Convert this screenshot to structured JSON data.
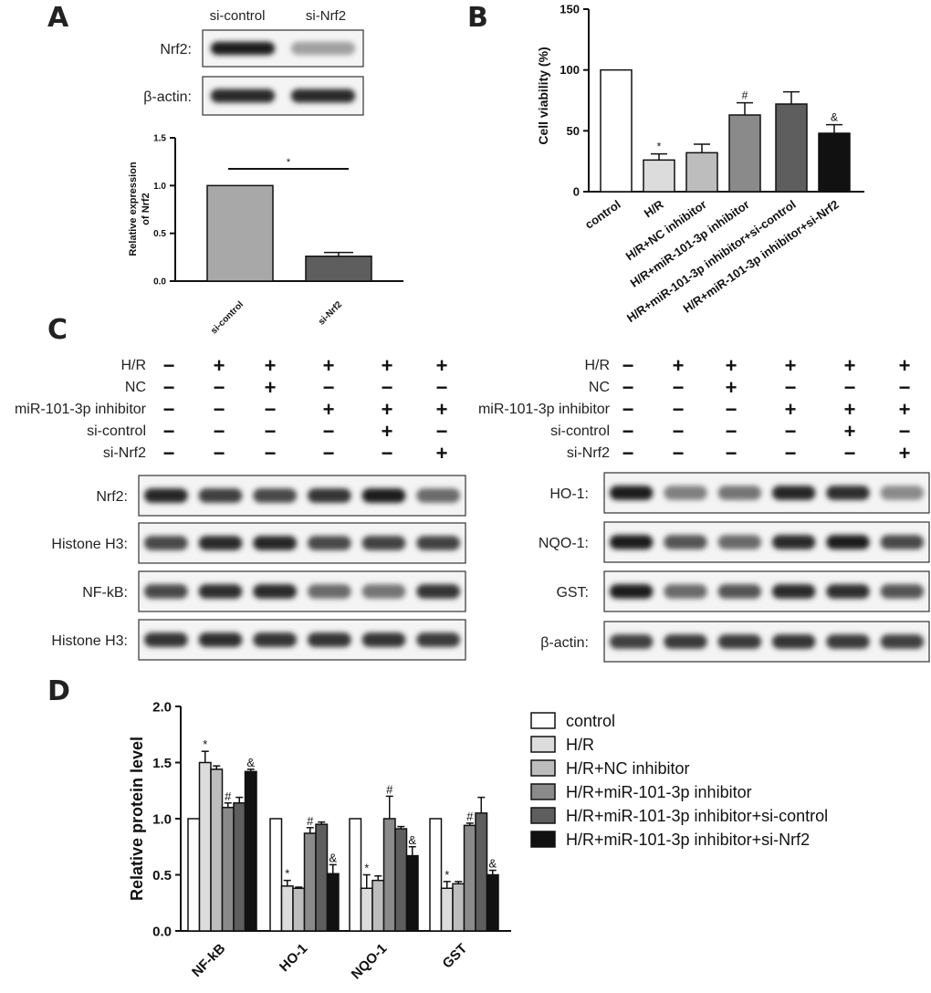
{
  "panel_letters": [
    "A",
    "B",
    "C",
    "D"
  ],
  "panel_a": {
    "blot_lane_labels": [
      "si-control",
      "si-Nrf2"
    ],
    "blots": [
      {
        "label": "Nrf2:",
        "intensities": [
          0.95,
          0.35
        ]
      },
      {
        "label": "β-actin:",
        "intensities": [
          0.9,
          0.9
        ]
      }
    ]
  },
  "panel_c": {
    "left": {
      "conditions": [
        {
          "label": "H/R",
          "signs": [
            "−",
            "+",
            "+",
            "+",
            "+",
            "+"
          ]
        },
        {
          "label": "NC",
          "signs": [
            "−",
            "−",
            "+",
            "−",
            "−",
            "−"
          ]
        },
        {
          "label": "miR-101-3p inhibitor",
          "signs": [
            "−",
            "−",
            "−",
            "+",
            "+",
            "+"
          ]
        },
        {
          "label": "si-control",
          "signs": [
            "−",
            "−",
            "−",
            "−",
            "+",
            "−"
          ]
        },
        {
          "label": "si-Nrf2",
          "signs": [
            "−",
            "−",
            "−",
            "−",
            "−",
            "+"
          ]
        }
      ],
      "blots": [
        {
          "label": "Nrf2:",
          "intensities": [
            0.92,
            0.8,
            0.75,
            0.85,
            0.95,
            0.6
          ]
        },
        {
          "label": "Histone H3:",
          "intensities": [
            0.75,
            0.9,
            0.92,
            0.75,
            0.78,
            0.78
          ]
        },
        {
          "label": "NF-kB:",
          "intensities": [
            0.75,
            0.88,
            0.9,
            0.6,
            0.55,
            0.85
          ]
        },
        {
          "label": "Histone H3:",
          "intensities": [
            0.85,
            0.88,
            0.85,
            0.85,
            0.85,
            0.82
          ]
        }
      ]
    },
    "right": {
      "conditions": [
        {
          "label": "H/R",
          "signs": [
            "−",
            "+",
            "+",
            "+",
            "+",
            "+"
          ]
        },
        {
          "label": "NC",
          "signs": [
            "−",
            "−",
            "+",
            "−",
            "−",
            "−"
          ]
        },
        {
          "label": "miR-101-3p inhibitor",
          "signs": [
            "−",
            "−",
            "−",
            "+",
            "+",
            "+"
          ]
        },
        {
          "label": "si-control",
          "signs": [
            "−",
            "−",
            "−",
            "−",
            "+",
            "−"
          ]
        },
        {
          "label": "si-Nrf2",
          "signs": [
            "−",
            "−",
            "−",
            "−",
            "−",
            "+"
          ]
        }
      ],
      "blots": [
        {
          "label": "HO-1:",
          "intensities": [
            0.95,
            0.5,
            0.55,
            0.92,
            0.88,
            0.45
          ]
        },
        {
          "label": "NQO-1:",
          "intensities": [
            0.95,
            0.7,
            0.6,
            0.9,
            0.95,
            0.75
          ]
        },
        {
          "label": "GST:",
          "intensities": [
            0.95,
            0.6,
            0.7,
            0.9,
            0.88,
            0.7
          ]
        },
        {
          "label": "β-actin:",
          "intensities": [
            0.8,
            0.82,
            0.82,
            0.85,
            0.82,
            0.8
          ]
        }
      ]
    }
  },
  "colors": {
    "palette": [
      "#ffffff",
      "#dcdcdc",
      "#bdbdbd",
      "#8a8a8a",
      "#5e5e5e",
      "#111111"
    ],
    "panel_a": [
      "#a8a8a8",
      "#5e5e5e"
    ]
  },
  "chart_data": [
    {
      "type": "bar",
      "panel": "A",
      "categories": [
        "si-control",
        "si-Nrf2"
      ],
      "values": [
        1.0,
        0.26
      ],
      "errors": [
        0.0,
        0.04
      ],
      "ylabel": "Relative expression of Nrf2",
      "ylim": [
        0,
        1.5
      ],
      "yticks": [
        "0.0",
        "0.5",
        "1.0",
        "1.5"
      ],
      "significance": "*"
    },
    {
      "type": "bar",
      "panel": "B",
      "categories": [
        "control",
        "H/R",
        "H/R+NC inhibitor",
        "H/R+miR-101-3p inhibitor",
        "H/R+miR-101-3p inhibitor+si-control",
        "H/R+miR-101-3p inhibitor+si-Nrf2"
      ],
      "values": [
        100,
        26,
        32,
        63,
        72,
        48
      ],
      "errors": [
        0,
        5,
        7,
        10,
        10,
        7
      ],
      "markers": [
        "",
        "*",
        "",
        "#",
        "",
        "&"
      ],
      "ylabel": "Cell viability (%)",
      "ylim": [
        0,
        150
      ],
      "yticks": [
        "0",
        "50",
        "100",
        "150"
      ]
    },
    {
      "type": "bar",
      "panel": "D",
      "categories": [
        "NF-kB",
        "HO-1",
        "NQO-1",
        "GST"
      ],
      "series": [
        {
          "name": "control",
          "values": [
            1.0,
            1.0,
            1.0,
            1.0
          ],
          "errors": [
            0,
            0,
            0,
            0
          ]
        },
        {
          "name": "H/R",
          "values": [
            1.5,
            0.4,
            0.38,
            0.38
          ],
          "errors": [
            0.1,
            0.05,
            0.12,
            0.06
          ]
        },
        {
          "name": "H/R+NC inhibitor",
          "values": [
            1.44,
            0.38,
            0.45,
            0.42
          ],
          "errors": [
            0.03,
            0.01,
            0.04,
            0.02
          ]
        },
        {
          "name": "H/R+miR-101-3p inhibitor",
          "values": [
            1.1,
            0.87,
            1.0,
            0.94
          ],
          "errors": [
            0.04,
            0.05,
            0.2,
            0.02
          ]
        },
        {
          "name": "H/R+miR-101-3p inhibitor+si-control",
          "values": [
            1.14,
            0.95,
            0.91,
            1.05
          ],
          "errors": [
            0.05,
            0.02,
            0.02,
            0.14
          ]
        },
        {
          "name": "H/R+miR-101-3p inhibitor+si-Nrf2",
          "values": [
            1.42,
            0.51,
            0.67,
            0.5
          ],
          "errors": [
            0.02,
            0.08,
            0.08,
            0.04
          ]
        }
      ],
      "markers": [
        [
          "",
          "*",
          "",
          "#",
          "",
          "&"
        ],
        [
          "",
          "*",
          "",
          "#",
          "",
          "&"
        ],
        [
          "",
          "*",
          "",
          "#",
          "",
          "&"
        ],
        [
          "",
          "*",
          "",
          "#",
          "",
          "&"
        ]
      ],
      "ylabel": "Relative protein level",
      "ylim": [
        0,
        2.0
      ],
      "yticks": [
        "0.0",
        "0.5",
        "1.0",
        "1.5",
        "2.0"
      ],
      "legend_position": "right"
    }
  ]
}
